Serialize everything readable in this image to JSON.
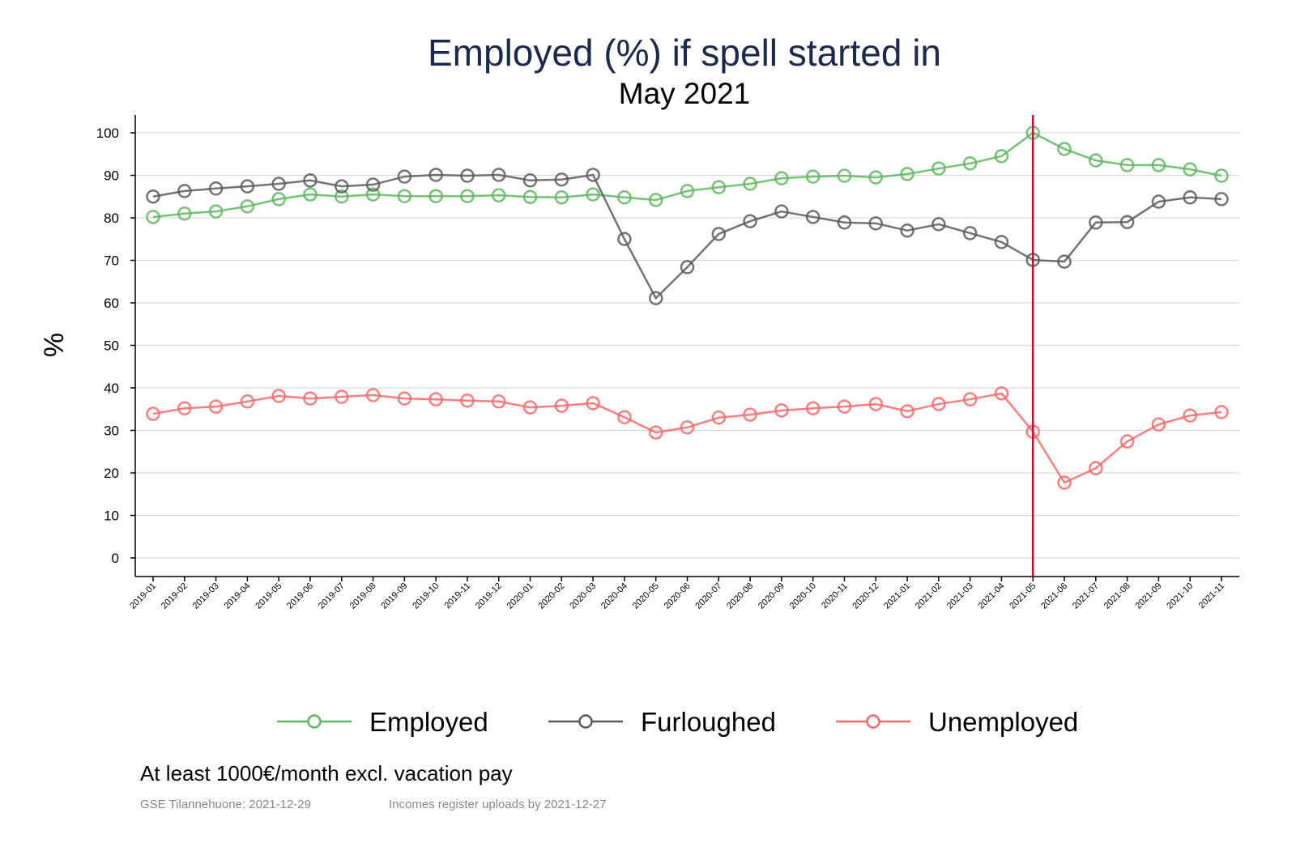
{
  "chart_data": {
    "type": "line",
    "title": "Employed (%) if spell started in",
    "subtitle": "May 2021",
    "xlabel": "",
    "ylabel": "%",
    "ylim": [
      -4,
      104
    ],
    "yticks": [
      0,
      10,
      20,
      30,
      40,
      50,
      60,
      70,
      80,
      90,
      100
    ],
    "grid": true,
    "legend_position": "bottom",
    "reference_line": {
      "x": "2021-05",
      "color": "#c8102e"
    },
    "x": [
      "2019-01",
      "2019-02",
      "2019-03",
      "2019-04",
      "2019-05",
      "2019-06",
      "2019-07",
      "2019-08",
      "2019-09",
      "2019-10",
      "2019-11",
      "2019-12",
      "2020-01",
      "2020-02",
      "2020-03",
      "2020-04",
      "2020-05",
      "2020-06",
      "2020-07",
      "2020-08",
      "2020-09",
      "2020-10",
      "2020-11",
      "2020-12",
      "2021-01",
      "2021-02",
      "2021-03",
      "2021-04",
      "2021-05",
      "2021-06",
      "2021-07",
      "2021-08",
      "2021-09",
      "2021-10",
      "2021-11"
    ],
    "series": [
      {
        "name": "Employed",
        "color": "#5cb85c",
        "values": [
          80.2,
          81.0,
          81.5,
          82.7,
          84.4,
          85.5,
          85.0,
          85.5,
          85.1,
          85.1,
          85.1,
          85.3,
          84.9,
          84.8,
          85.5,
          84.8,
          84.2,
          86.3,
          87.2,
          88.0,
          89.3,
          89.7,
          89.9,
          89.5,
          90.3,
          91.6,
          92.8,
          94.5,
          100.0,
          96.2,
          93.5,
          92.4,
          92.4,
          91.4,
          89.9
        ]
      },
      {
        "name": "Furloughed",
        "color": "#5a5a5a",
        "values": [
          85.0,
          86.3,
          86.9,
          87.4,
          88.0,
          88.8,
          87.4,
          87.8,
          89.7,
          90.1,
          89.9,
          90.1,
          88.8,
          89.0,
          90.1,
          75.0,
          61.1,
          68.4,
          76.2,
          79.2,
          81.5,
          80.2,
          78.9,
          78.7,
          77.0,
          78.5,
          76.4,
          74.3,
          70.1,
          69.7,
          78.9,
          79.0,
          83.8,
          84.8,
          84.4
        ]
      },
      {
        "name": "Unemployed",
        "color": "#ff6666",
        "values": [
          33.9,
          35.2,
          35.6,
          36.8,
          38.1,
          37.5,
          37.9,
          38.3,
          37.5,
          37.3,
          37.0,
          36.8,
          35.4,
          35.8,
          36.4,
          33.1,
          29.5,
          30.7,
          33.0,
          33.7,
          34.7,
          35.2,
          35.6,
          36.2,
          34.5,
          36.2,
          37.3,
          38.7,
          29.7,
          17.7,
          21.1,
          27.4,
          31.4,
          33.5,
          34.3
        ]
      }
    ]
  },
  "notes": {
    "caption": "At least 1000€/month excl. vacation pay",
    "source_left": "GSE Tilannehuone: 2021-12-29",
    "source_right": "Incomes register uploads by 2021-12-27"
  }
}
